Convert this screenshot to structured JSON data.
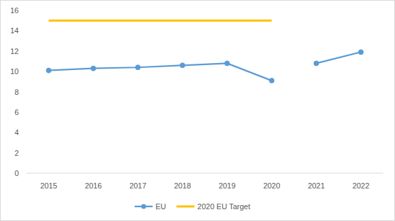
{
  "chart_data": {
    "type": "line",
    "categories": [
      "2015",
      "2016",
      "2017",
      "2018",
      "2019",
      "2020",
      "2021",
      "2022"
    ],
    "series": [
      {
        "name": "EU",
        "color": "#5b9bd5",
        "marker": "circle",
        "values": [
          10.1,
          10.3,
          10.4,
          10.6,
          10.8,
          9.1,
          null,
          null
        ]
      },
      {
        "color": "#5b9bd5",
        "marker": "circle",
        "values": [
          null,
          null,
          null,
          null,
          null,
          null,
          10.8,
          11.9
        ]
      },
      {
        "name": "2020 EU Target",
        "color": "#ffc000",
        "marker": "none",
        "values": [
          15,
          15,
          15,
          15,
          15,
          15,
          null,
          null
        ]
      }
    ],
    "ylim": [
      0,
      16
    ],
    "yticks": [
      0,
      2,
      4,
      6,
      8,
      10,
      12,
      14,
      16
    ],
    "grid": false,
    "legend": "bottom"
  }
}
